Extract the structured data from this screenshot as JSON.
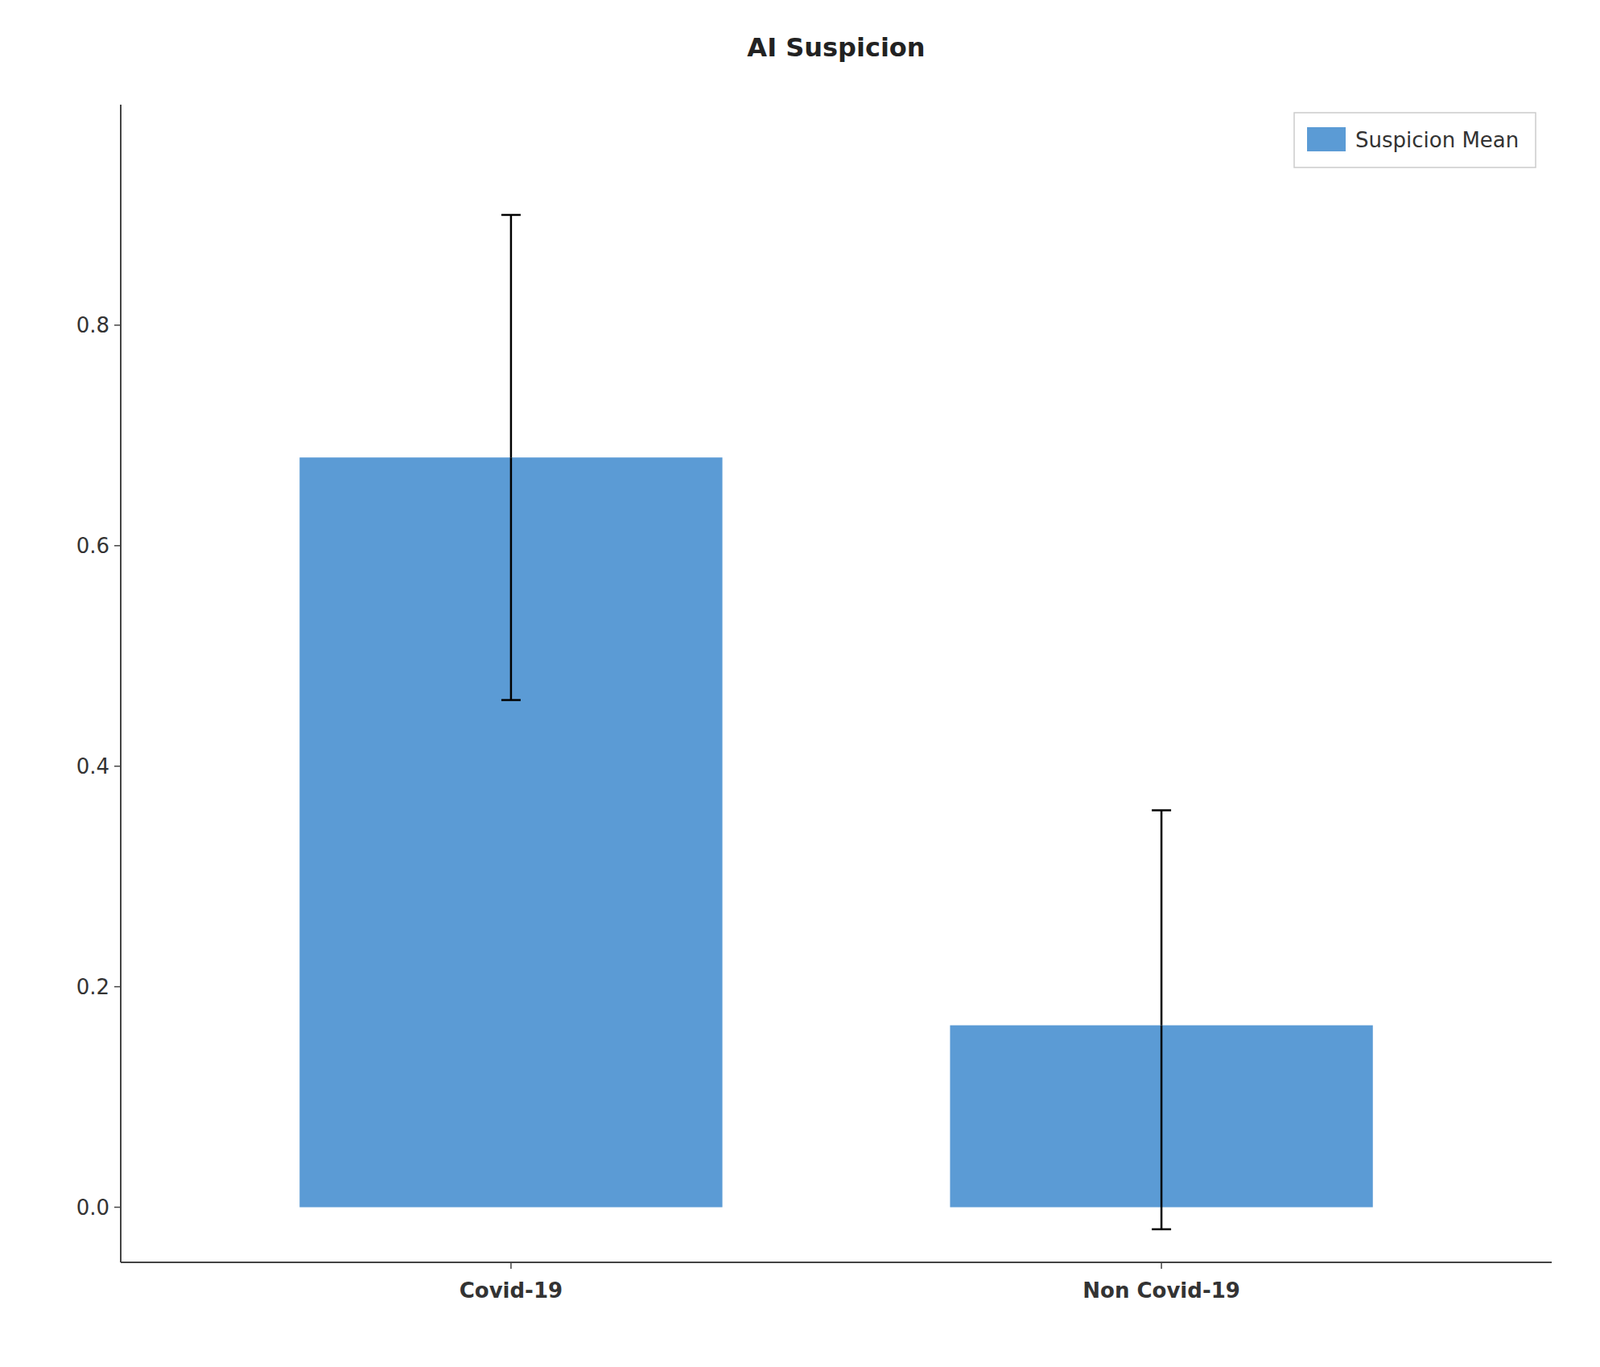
{
  "chart_data": {
    "type": "bar",
    "title": "AI Suspicion",
    "categories": [
      "Covid-19",
      "Non Covid-19"
    ],
    "series": [
      {
        "name": "Suspicion Mean",
        "color": "#5B9BD5",
        "values": [
          0.68,
          0.165
        ],
        "errors_low": [
          0.22,
          0.185
        ],
        "errors_high": [
          0.22,
          0.195
        ]
      }
    ],
    "ylim": [
      -0.05,
      1.0
    ],
    "yticks": [
      {
        "value": 0.0,
        "label": "0.0"
      },
      0.2,
      0.4,
      0.6,
      0.8
    ],
    "grid": false,
    "legend": "upper right"
  }
}
